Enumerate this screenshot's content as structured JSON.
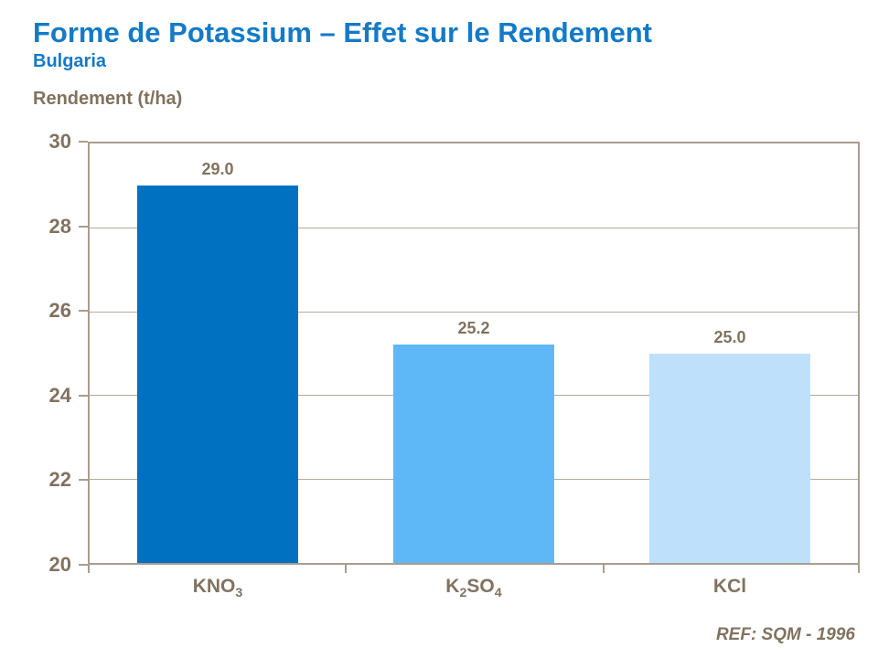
{
  "slide": {
    "kind": "presentation-chart-slide"
  },
  "colors": {
    "title_blue": "#137AC8",
    "text_brown": "#81725F",
    "axis_border": "#A89D8F",
    "gridline": "#B5AB9C",
    "bar_dark_blue": "#0071C1",
    "bar_medium_blue": "#5EB8F7",
    "bar_light_blue": "#BFE0FB"
  },
  "chart_data": {
    "type": "bar",
    "title": "Forme de Potassium – Effet sur le Rendement",
    "subtitle": "Bulgaria",
    "categories": [
      "KNO3",
      "K2SO4",
      "KCl"
    ],
    "category_label_parts": [
      [
        {
          "text": "KNO"
        },
        {
          "text": "3",
          "sub": true
        }
      ],
      [
        {
          "text": "K"
        },
        {
          "text": "2",
          "sub": true
        },
        {
          "text": "SO"
        },
        {
          "text": "4",
          "sub": true
        }
      ],
      [
        {
          "text": "KCl"
        }
      ]
    ],
    "values": [
      29.0,
      25.2,
      25.0
    ],
    "value_labels": [
      "29.0",
      "25.2",
      "25.0"
    ],
    "bar_colors": [
      "#0071C1",
      "#5EB8F7",
      "#BFE0FB"
    ],
    "xlabel": "",
    "ylabel": "Rendement (t/ha)",
    "ylim": [
      20,
      30
    ],
    "yticks": [
      30,
      28,
      26,
      24,
      22,
      20
    ],
    "grid": true,
    "legend_position": "none",
    "source": "REF: SQM - 1996"
  }
}
